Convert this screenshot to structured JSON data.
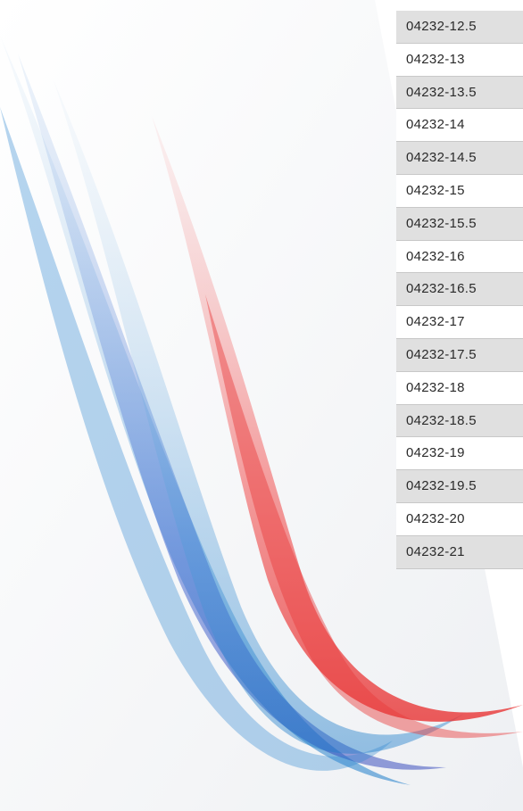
{
  "table": {
    "rows": [
      "04232-12.5",
      "04232-13",
      "04232-13.5",
      "04232-14",
      "04232-14.5",
      "04232-15",
      "04232-15.5",
      "04232-16",
      "04232-16.5",
      "04232-17",
      "04232-17.5",
      "04232-18",
      "04232-18.5",
      "04232-19",
      "04232-19.5",
      "04232-20",
      "04232-21"
    ]
  }
}
